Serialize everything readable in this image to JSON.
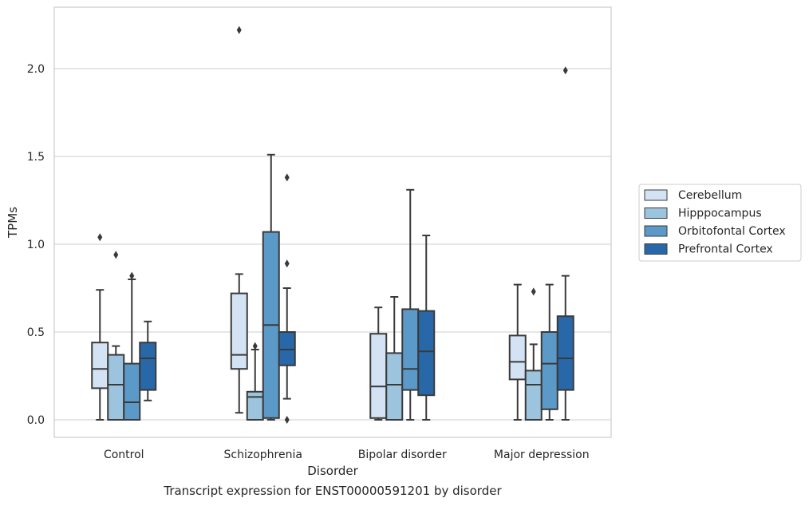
{
  "caption": "Transcript expression for ENST00000591201 by disorder",
  "chart_data": {
    "type": "boxplot",
    "title": "",
    "xlabel": "Disorder",
    "ylabel": "TPMs",
    "ylim": [
      -0.1,
      2.35
    ],
    "yticks": [
      0.0,
      0.5,
      1.0,
      1.5,
      2.0
    ],
    "ytick_labels": [
      "0.0",
      "0.5",
      "1.0",
      "1.5",
      "2.0"
    ],
    "grid": "horizontal",
    "legend_position": "right",
    "categories": [
      "Control",
      "Schizophrenia",
      "Bipolar disorder",
      "Major depression"
    ],
    "series": [
      {
        "name": "Cerebellum",
        "color": "#d4e3f3",
        "boxes": [
          {
            "whislo": 0.0,
            "q1": 0.18,
            "med": 0.29,
            "q3": 0.44,
            "whishi": 0.74,
            "fliers": [
              1.04
            ]
          },
          {
            "whislo": 0.04,
            "q1": 0.29,
            "med": 0.37,
            "q3": 0.72,
            "whishi": 0.83,
            "fliers": [
              2.22
            ]
          },
          {
            "whislo": 0.0,
            "q1": 0.01,
            "med": 0.19,
            "q3": 0.49,
            "whishi": 0.64,
            "fliers": []
          },
          {
            "whislo": 0.0,
            "q1": 0.23,
            "med": 0.33,
            "q3": 0.48,
            "whishi": 0.77,
            "fliers": []
          }
        ]
      },
      {
        "name": "Hipppocampus",
        "color": "#9dc4de",
        "boxes": [
          {
            "whislo": 0.0,
            "q1": 0.0,
            "med": 0.2,
            "q3": 0.37,
            "whishi": 0.42,
            "fliers": [
              0.94
            ]
          },
          {
            "whislo": 0.0,
            "q1": 0.0,
            "med": 0.13,
            "q3": 0.16,
            "whishi": 0.4,
            "fliers": [
              0.42
            ]
          },
          {
            "whislo": 0.0,
            "q1": 0.0,
            "med": 0.2,
            "q3": 0.38,
            "whishi": 0.7,
            "fliers": []
          },
          {
            "whislo": 0.0,
            "q1": 0.0,
            "med": 0.2,
            "q3": 0.28,
            "whishi": 0.43,
            "fliers": [
              0.73
            ]
          }
        ]
      },
      {
        "name": "Orbitofontal Cortex",
        "color": "#5b9ac8",
        "boxes": [
          {
            "whislo": 0.0,
            "q1": 0.0,
            "med": 0.1,
            "q3": 0.32,
            "whishi": 0.8,
            "fliers": [
              0.82
            ]
          },
          {
            "whislo": 0.0,
            "q1": 0.01,
            "med": 0.54,
            "q3": 1.07,
            "whishi": 1.51,
            "fliers": []
          },
          {
            "whislo": 0.0,
            "q1": 0.17,
            "med": 0.29,
            "q3": 0.63,
            "whishi": 1.31,
            "fliers": []
          },
          {
            "whislo": 0.0,
            "q1": 0.06,
            "med": 0.32,
            "q3": 0.5,
            "whishi": 0.77,
            "fliers": []
          }
        ]
      },
      {
        "name": "Prefrontal Cortex",
        "color": "#2868a9",
        "boxes": [
          {
            "whislo": 0.11,
            "q1": 0.17,
            "med": 0.35,
            "q3": 0.44,
            "whishi": 0.56,
            "fliers": []
          },
          {
            "whislo": 0.12,
            "q1": 0.31,
            "med": 0.4,
            "q3": 0.5,
            "whishi": 0.75,
            "fliers": [
              0.0,
              0.89,
              1.38
            ]
          },
          {
            "whislo": 0.0,
            "q1": 0.14,
            "med": 0.39,
            "q3": 0.62,
            "whishi": 1.05,
            "fliers": []
          },
          {
            "whislo": 0.0,
            "q1": 0.17,
            "med": 0.35,
            "q3": 0.59,
            "whishi": 0.82,
            "fliers": [
              1.99
            ]
          }
        ]
      }
    ]
  }
}
